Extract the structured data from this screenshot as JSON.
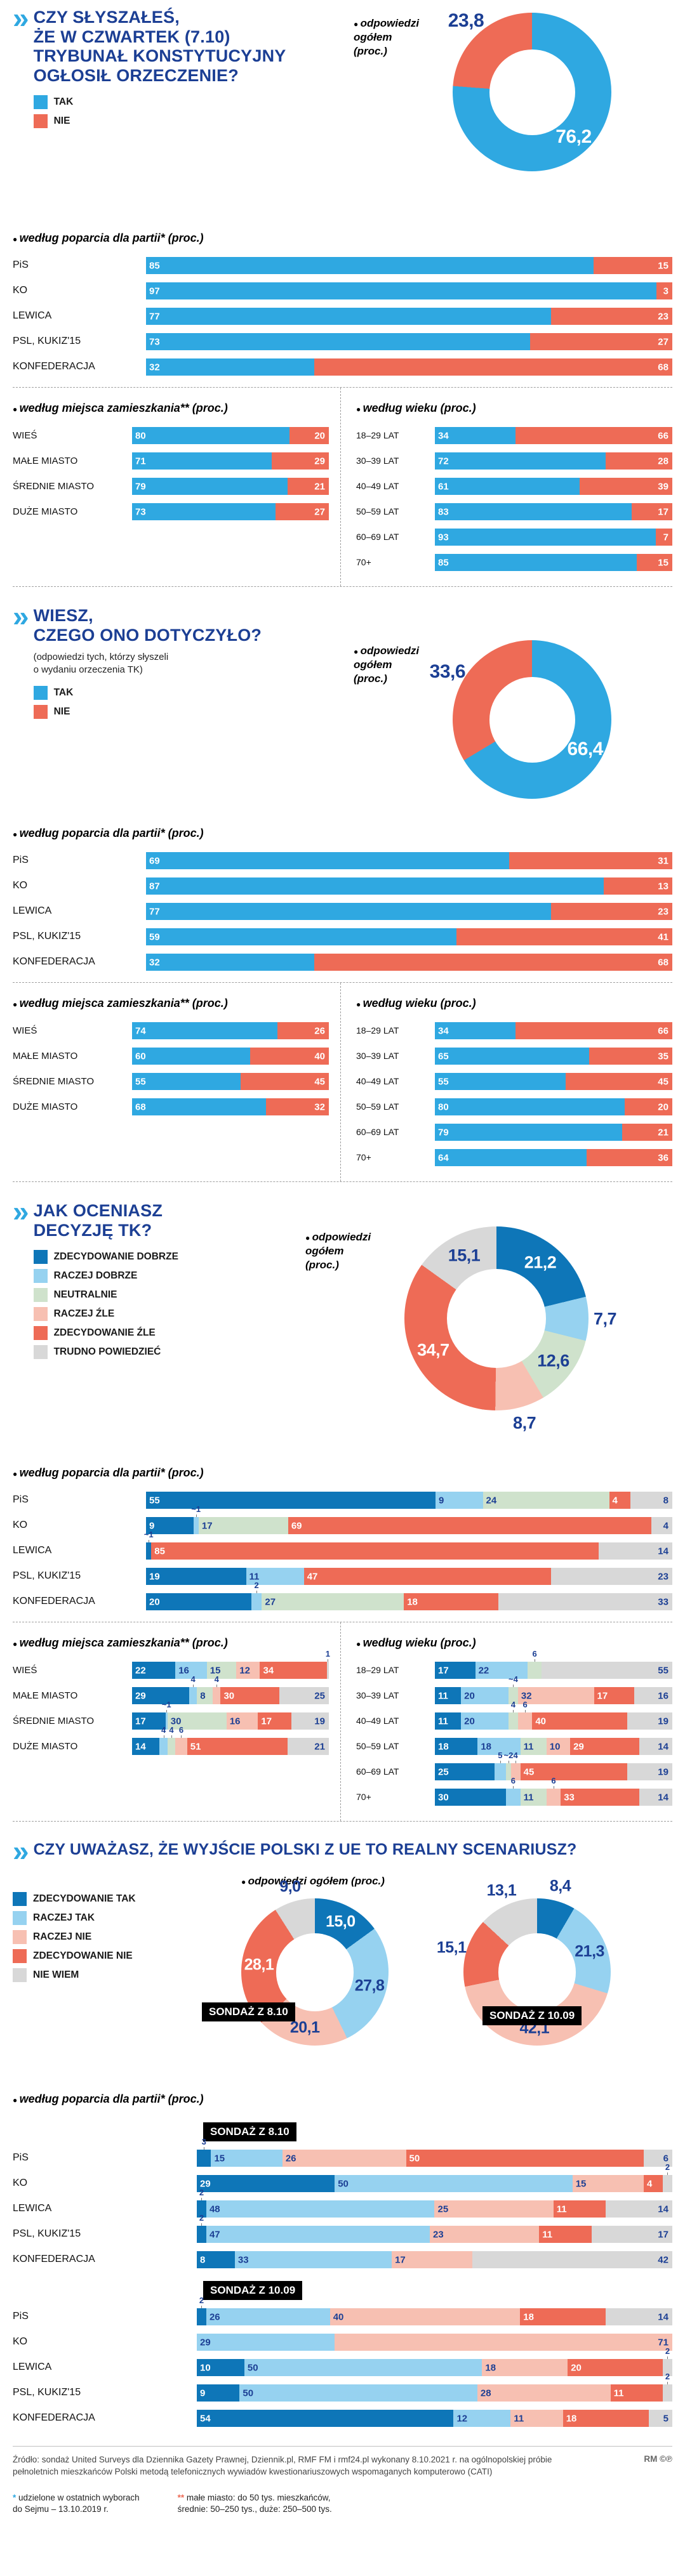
{
  "palettes": {
    "p2": [
      {
        "bg": "#2fa8e1",
        "tx": "#ffffff"
      },
      {
        "bg": "#ee6b56",
        "tx": "#ffffff"
      }
    ],
    "p6": [
      {
        "bg": "#0e76b8",
        "tx": "#ffffff"
      },
      {
        "bg": "#96d2f0",
        "tx": "#1c3f94"
      },
      {
        "bg": "#cfe2cc",
        "tx": "#1c3f94"
      },
      {
        "bg": "#f7c0b2",
        "tx": "#1c3f94"
      },
      {
        "bg": "#ee6b56",
        "tx": "#ffffff"
      },
      {
        "bg": "#d8d8d8",
        "tx": "#1c3f94"
      }
    ],
    "p5": [
      {
        "bg": "#0e76b8",
        "tx": "#ffffff"
      },
      {
        "bg": "#96d2f0",
        "tx": "#1c3f94"
      },
      {
        "bg": "#f7c0b2",
        "tx": "#1c3f94"
      },
      {
        "bg": "#ee6b56",
        "tx": "#ffffff"
      },
      {
        "bg": "#d8d8d8",
        "tx": "#1c3f94"
      }
    ]
  },
  "ui": {
    "marker": "»",
    "party_heading": "według poparcia dla partii* (proc.)",
    "residence_heading": "według miejsca zamieszkania** (proc.)",
    "age_heading": "według wieku (proc.)",
    "legend_yn": {
      "palette": "p2",
      "items": [
        "TAK",
        "NIE"
      ]
    },
    "legend_rating": {
      "palette": "p6",
      "items": [
        "ZDECYDOWANIE DOBRZE",
        "RACZEJ DOBRZE",
        "NEUTRALNIE",
        "RACZEJ ŹLE",
        "ZDECYDOWANIE ŹLE",
        "TRUDNO POWIEDZIEĆ"
      ]
    },
    "legend_scenario": {
      "palette": "p5",
      "items": [
        "ZDECYDOWANIE TAK",
        "RACZEJ TAK",
        "RACZEJ NIE",
        "ZDECYDOWANIE NIE",
        "NIE WIEM"
      ]
    }
  },
  "sections": {
    "s1": {
      "title": "CZY SŁYSZAŁEŚ,\nŻE W CZWARTEK (7.10)\nTRYBUNAŁ KONSTYTUCYJNY\nOGŁOSIŁ ORZECZENIE?",
      "overall_caption": "odpowiedzi ogółem\n(proc.)"
    },
    "s2": {
      "title": "WIESZ,\nCZEGO ONO DOTYCZYŁO?",
      "note": "(odpowiedzi tych, którzy słyszeli\no wydaniu orzeczenia TK)",
      "overall_caption": "odpowiedzi\nogółem\n(proc.)"
    },
    "s3": {
      "title": "JAK OCENIASZ\nDECYZJĘ TK?",
      "overall_caption": "odpowiedzi\nogółem\n(proc.)"
    },
    "s4": {
      "title": "CZY UWAŻASZ, ŻE WYJŚCIE POLSKI Z UE TO REALNY SCENARIUSZ?",
      "overall_caption": "odpowiedzi ogółem (proc.)",
      "survey_a": "SONDAŻ Z 8.10",
      "survey_b": "SONDAŻ Z 10.09"
    }
  },
  "chart_data": [
    {
      "id": "heard-overall",
      "type": "donut",
      "title": "odpowiedzi ogółem (proc.)",
      "answers": [
        "TAK",
        "NIE"
      ],
      "palette": "p2",
      "values": [
        76.2,
        23.8
      ],
      "display": [
        "76,2",
        "23,8"
      ],
      "inside": [
        true,
        false
      ],
      "size": 250,
      "hole": 0.54,
      "out": 28,
      "fs": 30
    },
    {
      "id": "heard-by-party",
      "type": "stacked_bar",
      "title": "według poparcia dla partii* (proc.)",
      "answers": [
        "TAK",
        "NIE"
      ],
      "palette": "p2",
      "rows": [
        {
          "label": "PiS",
          "values": [
            85,
            15
          ]
        },
        {
          "label": "KO",
          "values": [
            97,
            3
          ]
        },
        {
          "label": "LEWICA",
          "values": [
            77,
            23
          ]
        },
        {
          "label": "PSL, KUKIZ'15",
          "values": [
            73,
            27
          ]
        },
        {
          "label": "KONFEDERACJA",
          "values": [
            32,
            68
          ]
        }
      ]
    },
    {
      "id": "heard-by-residence",
      "type": "stacked_bar",
      "title": "według miejsca zamieszkania** (proc.)",
      "answers": [
        "TAK",
        "NIE"
      ],
      "palette": "p2",
      "rows": [
        {
          "label": "WIEŚ",
          "values": [
            80,
            20
          ]
        },
        {
          "label": "MAŁE MIASTO",
          "values": [
            71,
            29
          ]
        },
        {
          "label": "ŚREDNIE MIASTO",
          "values": [
            79,
            21
          ]
        },
        {
          "label": "DUŻE MIASTO",
          "values": [
            73,
            27
          ]
        }
      ]
    },
    {
      "id": "heard-by-age",
      "type": "stacked_bar",
      "title": "według wieku (proc.)",
      "answers": [
        "TAK",
        "NIE"
      ],
      "palette": "p2",
      "rows": [
        {
          "label": "18–29 LAT",
          "values": [
            34,
            66
          ]
        },
        {
          "label": "30–39 LAT",
          "values": [
            72,
            28
          ]
        },
        {
          "label": "40–49 LAT",
          "values": [
            61,
            39
          ]
        },
        {
          "label": "50–59 LAT",
          "values": [
            83,
            17
          ]
        },
        {
          "label": "60–69 LAT",
          "values": [
            93,
            7
          ]
        },
        {
          "label": "70+",
          "values": [
            85,
            15
          ]
        }
      ]
    },
    {
      "id": "knew-overall",
      "type": "donut",
      "title": "odpowiedzi ogółem (proc.)",
      "answers": [
        "TAK",
        "NIE"
      ],
      "palette": "p2",
      "values": [
        66.4,
        33.6
      ],
      "display": [
        "66,4",
        "33,6"
      ],
      "inside": [
        true,
        false
      ],
      "size": 250,
      "hole": 0.54,
      "out": 28,
      "fs": 30
    },
    {
      "id": "knew-by-party",
      "type": "stacked_bar",
      "title": "według poparcia dla partii* (proc.)",
      "answers": [
        "TAK",
        "NIE"
      ],
      "palette": "p2",
      "rows": [
        {
          "label": "PiS",
          "values": [
            69,
            31
          ]
        },
        {
          "label": "KO",
          "values": [
            87,
            13
          ]
        },
        {
          "label": "LEWICA",
          "values": [
            77,
            23
          ]
        },
        {
          "label": "PSL, KUKIZ'15",
          "values": [
            59,
            41
          ]
        },
        {
          "label": "KONFEDERACJA",
          "values": [
            32,
            68
          ]
        }
      ]
    },
    {
      "id": "knew-by-residence",
      "type": "stacked_bar",
      "title": "według miejsca zamieszkania** (proc.)",
      "answers": [
        "TAK",
        "NIE"
      ],
      "palette": "p2",
      "rows": [
        {
          "label": "WIEŚ",
          "values": [
            74,
            26
          ]
        },
        {
          "label": "MAŁE MIASTO",
          "values": [
            60,
            40
          ]
        },
        {
          "label": "ŚREDNIE MIASTO",
          "values": [
            55,
            45
          ]
        },
        {
          "label": "DUŻE MIASTO",
          "values": [
            68,
            32
          ]
        }
      ]
    },
    {
      "id": "knew-by-age",
      "type": "stacked_bar",
      "title": "według wieku (proc.)",
      "answers": [
        "TAK",
        "NIE"
      ],
      "palette": "p2",
      "rows": [
        {
          "label": "18–29 LAT",
          "values": [
            34,
            66
          ]
        },
        {
          "label": "30–39 LAT",
          "values": [
            65,
            35
          ]
        },
        {
          "label": "40–49 LAT",
          "values": [
            55,
            45
          ]
        },
        {
          "label": "50–59 LAT",
          "values": [
            80,
            20
          ]
        },
        {
          "label": "60–69 LAT",
          "values": [
            79,
            21
          ]
        },
        {
          "label": "70+",
          "values": [
            64,
            36
          ]
        }
      ]
    },
    {
      "id": "rating-overall",
      "type": "donut",
      "title": "odpowiedzi ogółem (proc.)",
      "answers": [
        "ZDECYDOWANIE DOBRZE",
        "RACZEJ DOBRZE",
        "NEUTRALNIE",
        "RACZEJ ŹLE",
        "ZDECYDOWANIE ŹLE",
        "TRUDNO POWIEDZIEĆ"
      ],
      "palette": "p6",
      "values": [
        21.2,
        7.7,
        12.6,
        8.7,
        34.7,
        15.1
      ],
      "display": [
        "21,2",
        "7,7",
        "12,6",
        "8,7",
        "34,7",
        "15,1"
      ],
      "inside": [
        true,
        false,
        true,
        false,
        true,
        true
      ],
      "size": 290,
      "hole": 0.54,
      "out": 26,
      "fs": 27
    },
    {
      "id": "rating-by-party",
      "type": "stacked_bar",
      "title": "według poparcia dla partii* (proc.)",
      "answers": [
        "ZDECYDOWANIE DOBRZE",
        "RACZEJ DOBRZE",
        "NEUTRALNIE",
        "RACZEJ ŹLE",
        "ZDECYDOWANIE ŹLE",
        "TRUDNO POWIEDZIEĆ"
      ],
      "palette": "p6",
      "rows": [
        {
          "label": "PiS",
          "values": [
            55,
            9,
            24,
            0,
            4,
            8
          ]
        },
        {
          "label": "KO",
          "values": [
            9,
            1,
            17,
            0,
            69,
            4
          ],
          "display": [
            "9",
            "~1",
            "17",
            "",
            "69",
            "4"
          ]
        },
        {
          "label": "LEWICA",
          "values": [
            1,
            0,
            0,
            0,
            85,
            14
          ],
          "display": [
            "~1",
            "",
            "",
            "",
            "85",
            "14"
          ]
        },
        {
          "label": "PSL, KUKIZ'15",
          "values": [
            19,
            11,
            0,
            0,
            47,
            23
          ]
        },
        {
          "label": "KONFEDERACJA",
          "values": [
            20,
            2,
            27,
            0,
            18,
            33
          ]
        }
      ]
    },
    {
      "id": "rating-by-residence",
      "type": "stacked_bar",
      "title": "według miejsca zamieszkania** (proc.)",
      "answers": [
        "ZDECYDOWANIE DOBRZE",
        "RACZEJ DOBRZE",
        "NEUTRALNIE",
        "RACZEJ ŹLE",
        "ZDECYDOWANIE ŹLE",
        "TRUDNO POWIEDZIEĆ"
      ],
      "palette": "p6",
      "rows": [
        {
          "label": "WIEŚ",
          "values": [
            22,
            16,
            15,
            12,
            34,
            1
          ]
        },
        {
          "label": "MAŁE MIASTO",
          "values": [
            29,
            4,
            8,
            4,
            30,
            25
          ]
        },
        {
          "label": "ŚREDNIE MIASTO",
          "values": [
            17,
            1,
            30,
            16,
            17,
            19
          ],
          "display": [
            "17",
            "~1",
            "30",
            "16",
            "17",
            "19"
          ]
        },
        {
          "label": "DUŻE MIASTO",
          "values": [
            14,
            4,
            4,
            6,
            51,
            21
          ]
        }
      ]
    },
    {
      "id": "rating-by-age",
      "type": "stacked_bar",
      "title": "według wieku (proc.)",
      "answers": [
        "ZDECYDOWANIE DOBRZE",
        "RACZEJ DOBRZE",
        "NEUTRALNIE",
        "RACZEJ ŹLE",
        "ZDECYDOWANIE ŹLE",
        "TRUDNO POWIEDZIEĆ"
      ],
      "palette": "p6",
      "rows": [
        {
          "label": "18–29 LAT",
          "values": [
            17,
            22,
            6,
            0,
            0,
            55
          ]
        },
        {
          "label": "30–39 LAT",
          "values": [
            11,
            20,
            4,
            32,
            17,
            16
          ],
          "display": [
            "11",
            "20",
            "~4",
            "32",
            "17",
            "16"
          ]
        },
        {
          "label": "40–49 LAT",
          "values": [
            11,
            20,
            4,
            6,
            40,
            19
          ]
        },
        {
          "label": "50–59 LAT",
          "values": [
            18,
            18,
            11,
            10,
            29,
            14
          ]
        },
        {
          "label": "60–69 LAT",
          "values": [
            25,
            5,
            2,
            4,
            45,
            19
          ],
          "display": [
            "25",
            "5",
            "~2",
            "4",
            "45",
            "19"
          ]
        },
        {
          "label": "70+",
          "values": [
            30,
            6,
            11,
            6,
            33,
            14
          ]
        }
      ]
    },
    {
      "id": "polexit-overall-8-10",
      "type": "donut",
      "title": "SONDAŻ Z 8.10",
      "answers": [
        "ZDECYDOWANIE TAK",
        "RACZEJ TAK",
        "RACZEJ NIE",
        "ZDECYDOWANIE NIE",
        "NIE WIEM"
      ],
      "palette": "p5",
      "values": [
        15.0,
        27.8,
        20.1,
        28.1,
        9.0
      ],
      "display": [
        "15,0",
        "27,8",
        "20,1",
        "28,1",
        "9,0"
      ],
      "inside": [
        true,
        true,
        true,
        true,
        false
      ],
      "size": 232,
      "hole": 0.53,
      "out": 24,
      "fs": 25
    },
    {
      "id": "polexit-overall-10-09",
      "type": "donut",
      "title": "SONDAŻ Z 10.09",
      "answers": [
        "ZDECYDOWANIE TAK",
        "RACZEJ TAK",
        "RACZEJ NIE",
        "ZDECYDOWANIE NIE",
        "NIE WIEM"
      ],
      "palette": "p5",
      "values": [
        8.4,
        21.3,
        42.1,
        15.1,
        13.1
      ],
      "display": [
        "8,4",
        "21,3",
        "42,1",
        "15,1",
        "13,1"
      ],
      "inside": [
        false,
        true,
        true,
        false,
        false
      ],
      "size": 232,
      "hole": 0.53,
      "out": 24,
      "fs": 25
    },
    {
      "id": "polexit-by-party-8-10",
      "type": "stacked_bar",
      "title": "SONDAŻ Z 8.10",
      "answers": [
        "ZDECYDOWANIE TAK",
        "RACZEJ TAK",
        "RACZEJ NIE",
        "ZDECYDOWANIE NIE",
        "NIE WIEM"
      ],
      "palette": "p5",
      "rows": [
        {
          "label": "PiS",
          "values": [
            3,
            15,
            26,
            50,
            6
          ]
        },
        {
          "label": "KO",
          "values": [
            29,
            50,
            15,
            4,
            2
          ]
        },
        {
          "label": "LEWICA",
          "values": [
            2,
            48,
            25,
            11,
            14
          ]
        },
        {
          "label": "PSL, KUKIZ'15",
          "values": [
            2,
            47,
            23,
            11,
            17
          ]
        },
        {
          "label": "KONFEDERACJA",
          "values": [
            8,
            33,
            17,
            0,
            42
          ]
        }
      ]
    },
    {
      "id": "polexit-by-party-10-09",
      "type": "stacked_bar",
      "title": "SONDAŻ Z 10.09",
      "answers": [
        "ZDECYDOWANIE TAK",
        "RACZEJ TAK",
        "RACZEJ NIE",
        "ZDECYDOWANIE NIE",
        "NIE WIEM"
      ],
      "palette": "p5",
      "rows": [
        {
          "label": "PiS",
          "values": [
            2,
            26,
            40,
            18,
            14
          ]
        },
        {
          "label": "KO",
          "values": [
            0,
            29,
            71,
            0,
            0
          ]
        },
        {
          "label": "LEWICA",
          "values": [
            10,
            50,
            18,
            20,
            2
          ]
        },
        {
          "label": "PSL, KUKIZ'15",
          "values": [
            9,
            50,
            28,
            11,
            2
          ]
        },
        {
          "label": "KONFEDERACJA",
          "values": [
            54,
            12,
            11,
            18,
            5
          ]
        }
      ]
    }
  ],
  "footer": {
    "source": "Źródło: sondaż United Surveys dla Dziennika Gazety Prawnej, Dziennik.pl, RMF FM i rmf24.pl wykonany 8.10.2021 r. na ogólnopolskiej próbie pełnoletnich mieszkańców Polski metodą telefonicznych wywiadów kwestionariuszowych wspomaganych komputerowo (CATI)",
    "credit": "RM",
    "marks": "©℗",
    "note1_mark": "*",
    "note1": "udzielone w ostatnich wyborach\ndo Sejmu – 13.10.2019 r.",
    "note2_mark": "**",
    "note2": "małe miasto: do 50 tys. mieszkańców,\nśrednie: 50–250 tys., duże: 250–500 tys."
  }
}
